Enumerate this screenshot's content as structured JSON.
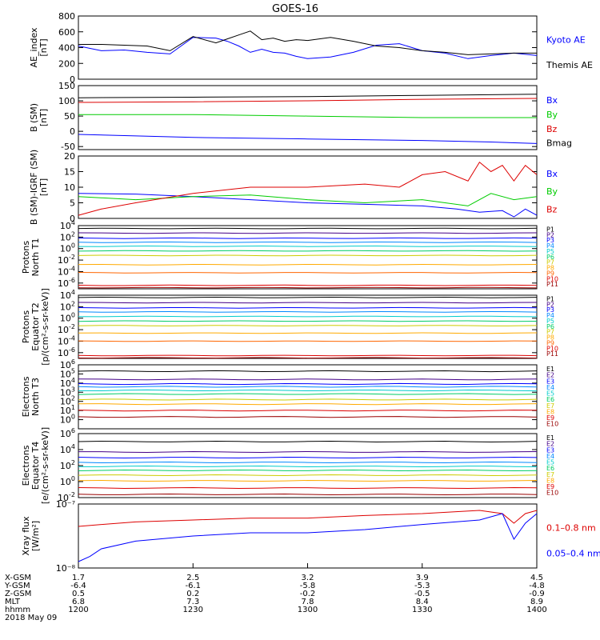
{
  "title": "GOES-16",
  "colors": {
    "black": "#000000",
    "blue": "#0000ff",
    "green": "#00cc00",
    "red": "#dd0000",
    "yellow": "#e6e600"
  },
  "chart_data": [
    {
      "type": "line",
      "id": "ae",
      "ylabel": [
        "AE_index",
        "[nT]"
      ],
      "ylim": [
        0,
        800
      ],
      "yticks": [
        0,
        200,
        400,
        600,
        800
      ],
      "log": false,
      "legend": [
        {
          "text": "Kyoto AE",
          "color": "#0000ff"
        },
        {
          "text": "Themis AE",
          "color": "#000000"
        }
      ],
      "series": [
        {
          "name": "Kyoto AE",
          "color": "#0000ff",
          "x": [
            0,
            10,
            20,
            30,
            40,
            50,
            60,
            65,
            70,
            75,
            80,
            85,
            90,
            95,
            100,
            110,
            120,
            130,
            140,
            150,
            160,
            170,
            180,
            190,
            200
          ],
          "y": [
            420,
            360,
            370,
            340,
            320,
            530,
            520,
            480,
            420,
            340,
            380,
            340,
            330,
            290,
            260,
            280,
            340,
            430,
            450,
            360,
            330,
            260,
            300,
            330,
            300
          ]
        },
        {
          "name": "Themis AE",
          "color": "#000000",
          "x": [
            0,
            10,
            20,
            30,
            40,
            50,
            60,
            65,
            70,
            75,
            80,
            85,
            90,
            95,
            100,
            110,
            120,
            130,
            140,
            150,
            160,
            170,
            180,
            190,
            200
          ],
          "y": [
            440,
            440,
            430,
            420,
            360,
            540,
            460,
            510,
            560,
            610,
            500,
            520,
            480,
            500,
            490,
            530,
            480,
            420,
            400,
            360,
            340,
            310,
            320,
            330,
            330
          ]
        }
      ]
    },
    {
      "type": "line",
      "id": "bsm",
      "ylabel": [
        "B (SM)",
        "[nT]"
      ],
      "ylim": [
        -60,
        150
      ],
      "yticks": [
        -50,
        0,
        50,
        100,
        150
      ],
      "log": false,
      "legend": [
        {
          "text": "Bx",
          "color": "#0000ff"
        },
        {
          "text": "By",
          "color": "#00cc00"
        },
        {
          "text": "Bz",
          "color": "#dd0000"
        },
        {
          "text": "Bmag",
          "color": "#000000"
        }
      ],
      "series": [
        {
          "name": "Bx",
          "color": "#0000ff",
          "x": [
            0,
            50,
            100,
            150,
            180,
            200
          ],
          "y": [
            -10,
            -20,
            -25,
            -30,
            -35,
            -40
          ]
        },
        {
          "name": "By",
          "color": "#00cc00",
          "x": [
            0,
            50,
            100,
            150,
            200
          ],
          "y": [
            55,
            55,
            50,
            45,
            45
          ]
        },
        {
          "name": "Bz",
          "color": "#dd0000",
          "x": [
            0,
            50,
            100,
            150,
            200
          ],
          "y": [
            95,
            97,
            100,
            105,
            108
          ]
        },
        {
          "name": "Bmag",
          "color": "#000000",
          "x": [
            0,
            50,
            100,
            150,
            200
          ],
          "y": [
            110,
            112,
            114,
            118,
            122
          ]
        }
      ]
    },
    {
      "type": "line",
      "id": "bmodel",
      "ylabel": [
        "B (SM)-IGRF (SM)",
        "[nT]"
      ],
      "ylim": [
        0,
        20
      ],
      "yticks": [
        0,
        5,
        10,
        15,
        20
      ],
      "log": false,
      "legend": [
        {
          "text": "Bx",
          "color": "#0000ff"
        },
        {
          "text": "By",
          "color": "#00cc00"
        },
        {
          "text": "Bz",
          "color": "#dd0000"
        }
      ],
      "series": [
        {
          "name": "Bx",
          "color": "#0000ff",
          "x": [
            0,
            25,
            50,
            75,
            100,
            125,
            150,
            165,
            175,
            185,
            190,
            195,
            200
          ],
          "y": [
            8,
            7.8,
            7,
            6,
            5,
            4.5,
            4,
            3,
            2,
            2.5,
            0.5,
            3,
            1
          ]
        },
        {
          "name": "By",
          "color": "#00cc00",
          "x": [
            0,
            25,
            50,
            75,
            100,
            125,
            150,
            160,
            170,
            180,
            190,
            200
          ],
          "y": [
            7,
            6,
            7,
            7.5,
            6,
            5,
            6,
            5,
            4,
            8,
            6,
            7
          ]
        },
        {
          "name": "Bz",
          "color": "#dd0000",
          "x": [
            0,
            10,
            25,
            50,
            75,
            100,
            125,
            140,
            150,
            160,
            170,
            175,
            180,
            185,
            190,
            195,
            200
          ],
          "y": [
            1,
            3,
            5,
            8,
            10,
            10,
            11,
            10,
            14,
            15,
            12,
            18,
            15,
            17,
            12,
            17,
            14
          ]
        }
      ]
    },
    {
      "type": "line",
      "id": "pnorth",
      "ylabel": [
        "Protons",
        "North T1"
      ],
      "log": true,
      "ylim": [
        -7,
        4
      ],
      "yticks": [
        4,
        2,
        0,
        -2,
        -4,
        -6
      ],
      "legend": [
        {
          "text": "P1",
          "color": "#000000"
        },
        {
          "text": "P2",
          "color": "#440088"
        },
        {
          "text": "P3",
          "color": "#0000ff"
        },
        {
          "text": "P4",
          "color": "#0088ff"
        },
        {
          "text": "P5",
          "color": "#00cccc"
        },
        {
          "text": "P6",
          "color": "#00cc66"
        },
        {
          "text": "P7",
          "color": "#cccc00"
        },
        {
          "text": "P8",
          "color": "#ffaa00"
        },
        {
          "text": "P9",
          "color": "#ff6600"
        },
        {
          "text": "P10",
          "color": "#dd0000"
        },
        {
          "text": "P11",
          "color": "#990000"
        }
      ],
      "levels": [
        3.5,
        2.7,
        1.8,
        1.1,
        0.4,
        -0.4,
        -1.2,
        -2.8,
        -4.2,
        -6.4,
        -6.8
      ]
    },
    {
      "type": "line",
      "id": "pequator",
      "ylabel": [
        "Protons",
        "Equator T2",
        "[p/(cm²-s-sr-keV)]"
      ],
      "log": true,
      "ylim": [
        -7,
        4
      ],
      "yticks": [
        4,
        2,
        0,
        -2,
        -4,
        -6
      ],
      "legend": [
        {
          "text": "P1",
          "color": "#000000"
        },
        {
          "text": "P2",
          "color": "#440088"
        },
        {
          "text": "P3",
          "color": "#0000ff"
        },
        {
          "text": "P4",
          "color": "#0088ff"
        },
        {
          "text": "P5",
          "color": "#00cccc"
        },
        {
          "text": "P6",
          "color": "#00cc66"
        },
        {
          "text": "P7",
          "color": "#cccc00"
        },
        {
          "text": "P8",
          "color": "#ffaa00"
        },
        {
          "text": "P9",
          "color": "#ff6600"
        },
        {
          "text": "P10",
          "color": "#dd0000"
        },
        {
          "text": "P11",
          "color": "#990000"
        }
      ],
      "levels": [
        3.6,
        2.7,
        1.8,
        1.1,
        0.3,
        -0.5,
        -1.3,
        -2.6,
        -4.0,
        -6.5,
        -6.9
      ]
    },
    {
      "type": "line",
      "id": "enorth",
      "ylabel": [
        "Electrons",
        "North T3"
      ],
      "log": true,
      "ylim": [
        -1,
        6
      ],
      "yticks": [
        6,
        5,
        4,
        3,
        2,
        1,
        0
      ],
      "legend": [
        {
          "text": "E1",
          "color": "#000000"
        },
        {
          "text": "E2",
          "color": "#440088"
        },
        {
          "text": "E3",
          "color": "#0000ff"
        },
        {
          "text": "E4",
          "color": "#0088ff"
        },
        {
          "text": "E5",
          "color": "#00cccc"
        },
        {
          "text": "E6",
          "color": "#00cc66"
        },
        {
          "text": "E7",
          "color": "#cccc00"
        },
        {
          "text": "E8",
          "color": "#ffaa00"
        },
        {
          "text": "E9",
          "color": "#dd0000"
        },
        {
          "text": "E10",
          "color": "#990000"
        }
      ],
      "levels": [
        5.3,
        4.4,
        3.9,
        3.6,
        3.2,
        2.8,
        2.2,
        1.7,
        1.0,
        0.3
      ]
    },
    {
      "type": "line",
      "id": "eequator",
      "ylabel": [
        "Electrons",
        "Equator T4",
        "[e/(cm²-s-sr-keV)]"
      ],
      "log": true,
      "ylim": [
        -2,
        6
      ],
      "yticks": [
        6,
        4,
        2,
        0,
        -2
      ],
      "legend": [
        {
          "text": "E1",
          "color": "#000000"
        },
        {
          "text": "E2",
          "color": "#440088"
        },
        {
          "text": "E3",
          "color": "#0000ff"
        },
        {
          "text": "E4",
          "color": "#0088ff"
        },
        {
          "text": "E5",
          "color": "#00cccc"
        },
        {
          "text": "E6",
          "color": "#00cc66"
        },
        {
          "text": "E7",
          "color": "#cccc00"
        },
        {
          "text": "E8",
          "color": "#ffaa00"
        },
        {
          "text": "E9",
          "color": "#dd0000"
        },
        {
          "text": "E10",
          "color": "#990000"
        }
      ],
      "levels": [
        5.0,
        3.7,
        3.0,
        2.4,
        1.9,
        1.4,
        0.8,
        0.1,
        -0.8,
        -1.6
      ]
    },
    {
      "type": "line",
      "id": "xray",
      "ylabel": [
        "Xray flux",
        "[W/m²]"
      ],
      "log": true,
      "ylim": [
        -8,
        -7
      ],
      "yticks": [
        -7,
        -8
      ],
      "ticklabels": [
        "10⁻⁷",
        "10⁻⁸"
      ],
      "legend": [
        {
          "text": "0.1–0.8 nm",
          "color": "#dd0000"
        },
        {
          "text": "0.05–0.4 nm",
          "color": "#0000ff"
        }
      ],
      "series": [
        {
          "name": "0.1–0.8 nm",
          "color": "#dd0000",
          "x": [
            0,
            10,
            25,
            50,
            75,
            100,
            125,
            150,
            175,
            185,
            190,
            195,
            200
          ],
          "y": [
            -7.35,
            -7.32,
            -7.28,
            -7.25,
            -7.22,
            -7.22,
            -7.18,
            -7.15,
            -7.1,
            -7.15,
            -7.3,
            -7.15,
            -7.1
          ]
        },
        {
          "name": "0.05–0.4 nm",
          "color": "#0000ff",
          "x": [
            0,
            5,
            10,
            25,
            50,
            75,
            100,
            125,
            150,
            175,
            185,
            190,
            195,
            200
          ],
          "y": [
            -7.9,
            -7.82,
            -7.7,
            -7.58,
            -7.5,
            -7.45,
            -7.45,
            -7.4,
            -7.32,
            -7.25,
            -7.15,
            -7.55,
            -7.3,
            -7.15
          ]
        }
      ]
    }
  ],
  "xaxis": {
    "rows": [
      {
        "label": "X-GSM",
        "values": [
          "1.7",
          "2.5",
          "3.2",
          "3.9",
          "4.5"
        ]
      },
      {
        "label": "Y-GSM",
        "values": [
          "-6.4",
          "-6.1",
          "-5.8",
          "-5.3",
          "-4.8"
        ]
      },
      {
        "label": "Z-GSM",
        "values": [
          "0.5",
          "0.2",
          "-0.2",
          "-0.5",
          "-0.9"
        ]
      },
      {
        "label": "MLT",
        "values": [
          "6.8",
          "7.3",
          "7.8",
          "8.4",
          "8.9"
        ]
      },
      {
        "label": "hhmm",
        "values": [
          "1200",
          "1230",
          "1300",
          "1330",
          "1400"
        ]
      }
    ],
    "date": "2018 May 09",
    "range": [
      0,
      200
    ]
  }
}
